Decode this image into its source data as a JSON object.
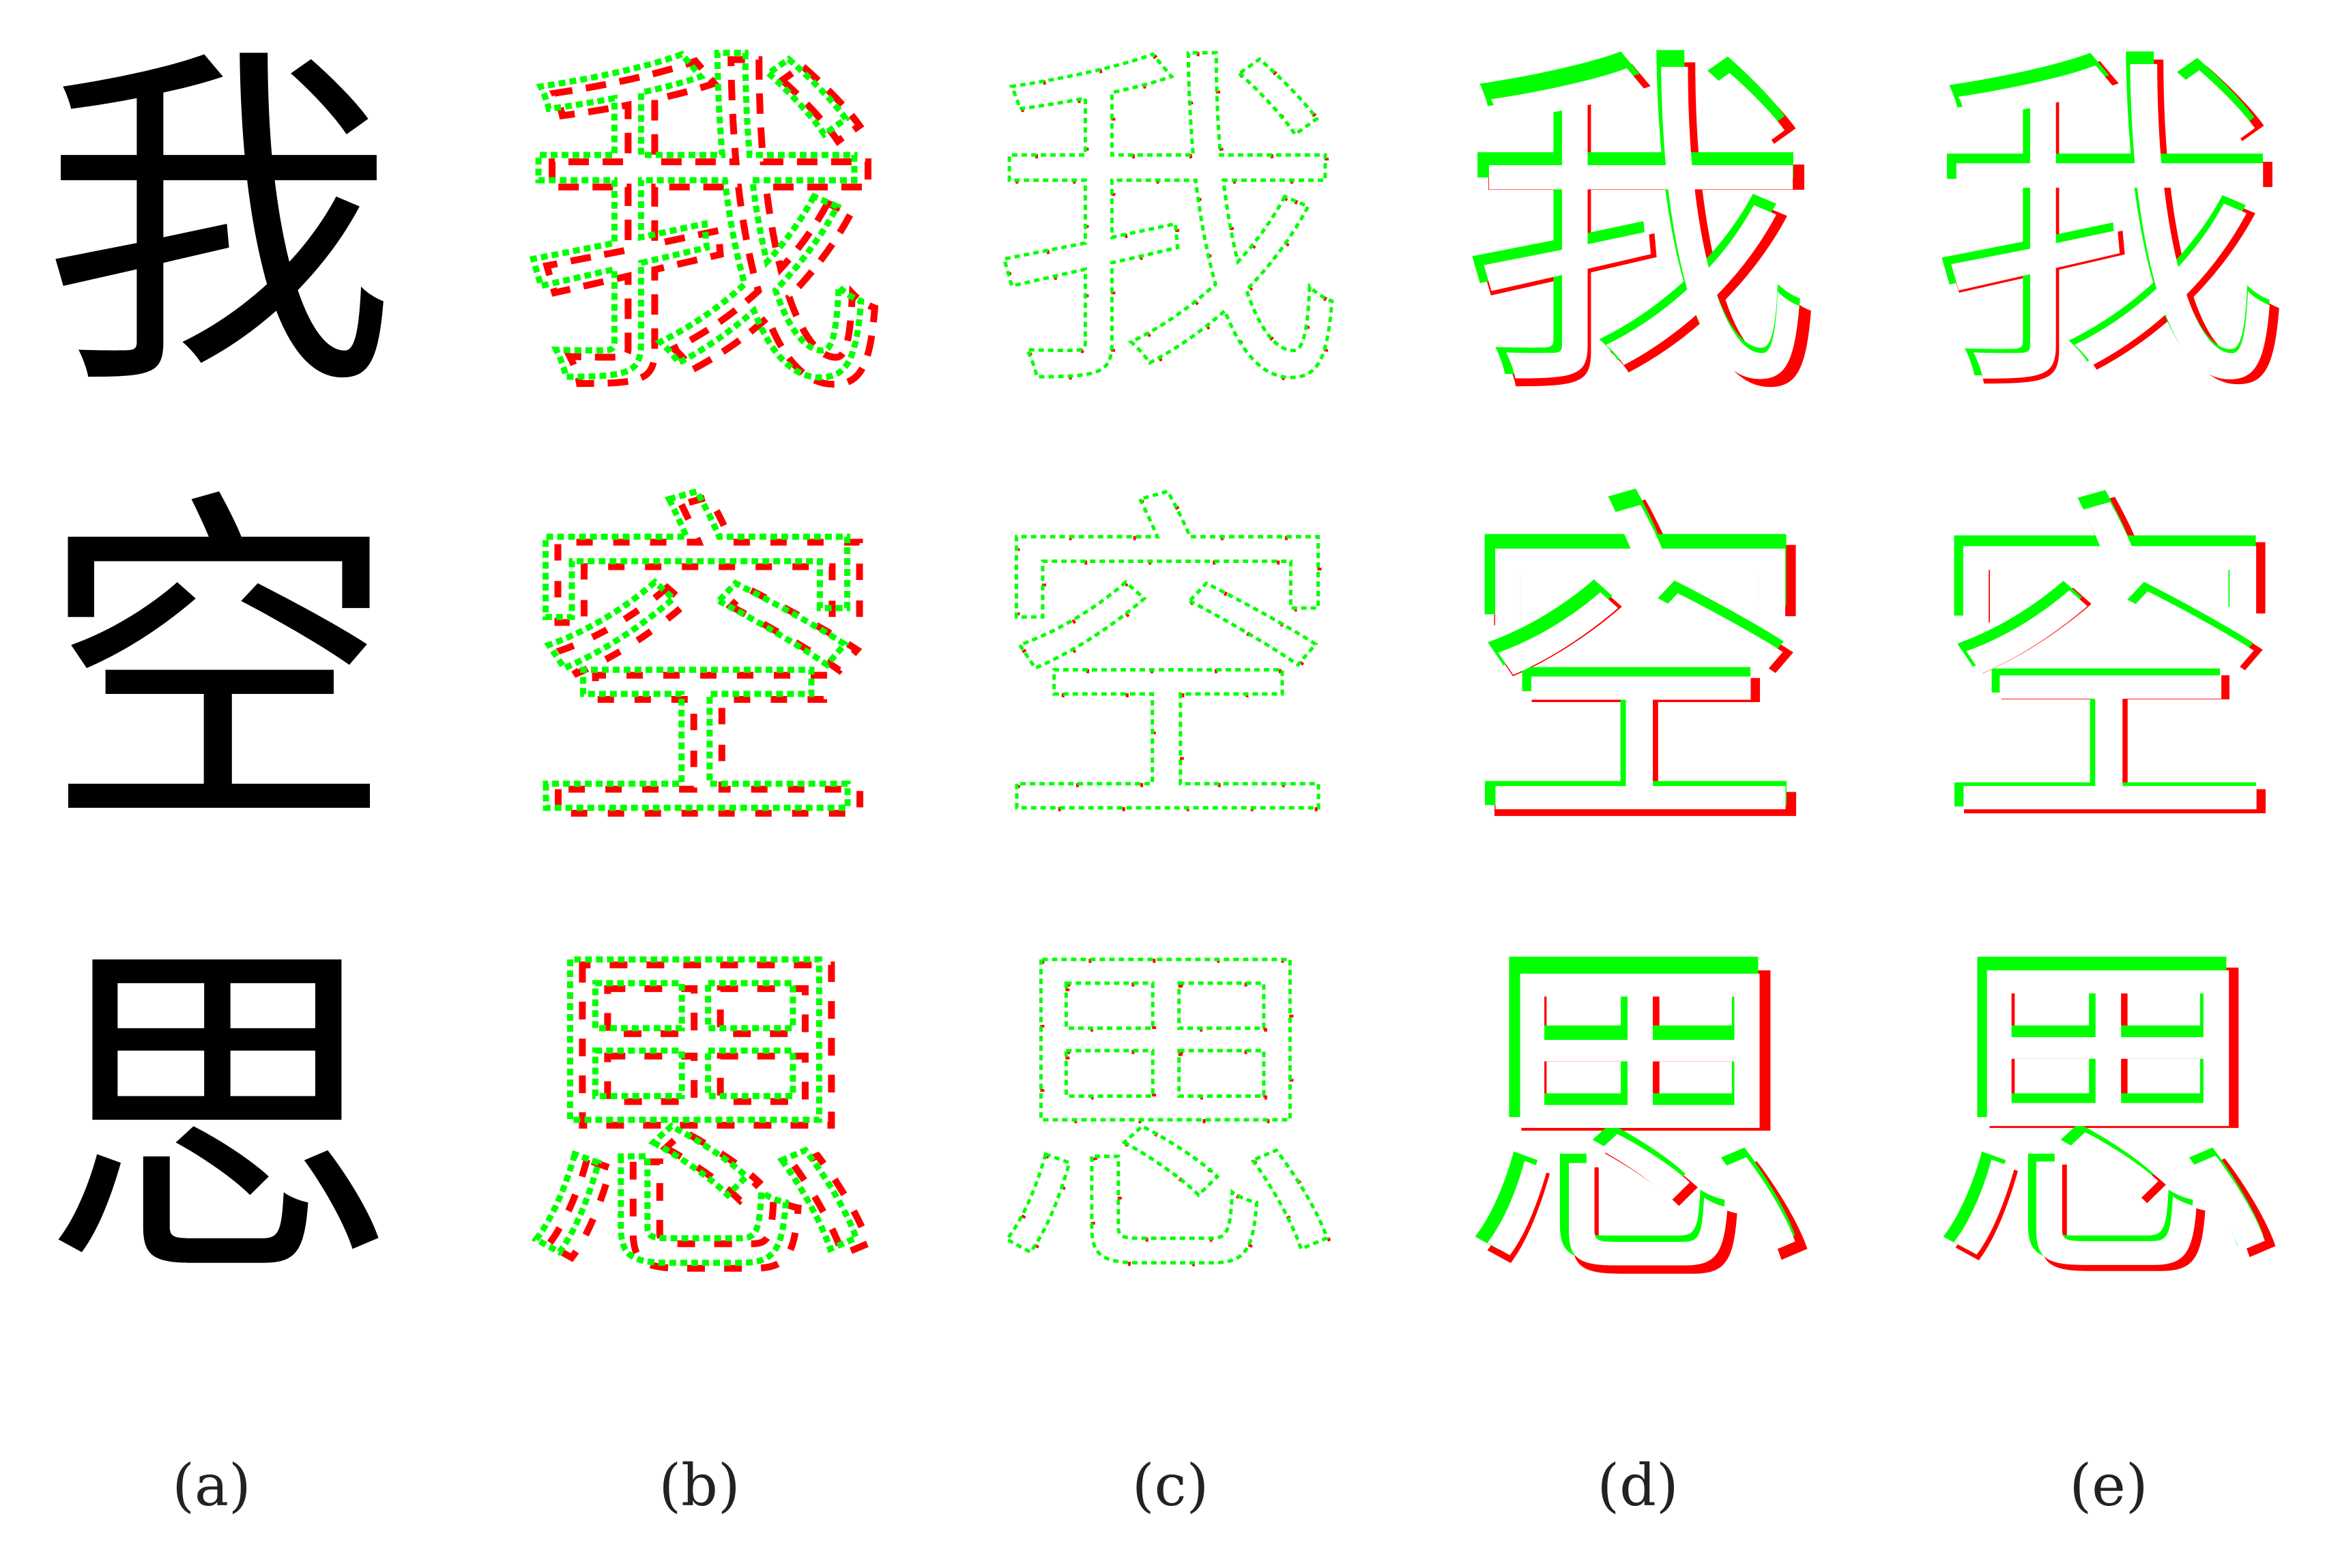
{
  "figure": {
    "characters": [
      "我",
      "空",
      "思"
    ],
    "columns": [
      {
        "id": "a",
        "label": "(a)",
        "style": "solid",
        "colors": {
          "fill": "#000000"
        }
      },
      {
        "id": "b",
        "label": "(b)",
        "style": "dotted-outline",
        "colors": {
          "primary": "#00ff00",
          "secondary": "#ff0000"
        }
      },
      {
        "id": "c",
        "label": "(c)",
        "style": "thin-dotted-outline",
        "colors": {
          "primary": "#00ff00",
          "secondary": "#ff0000"
        }
      },
      {
        "id": "d",
        "label": "(d)",
        "style": "shadow-outline",
        "colors": {
          "primary": "#00ff00",
          "secondary": "#ff0000"
        }
      },
      {
        "id": "e",
        "label": "(e)",
        "style": "shadow-outline",
        "colors": {
          "primary": "#00ff00",
          "secondary": "#ff0000"
        }
      }
    ]
  }
}
